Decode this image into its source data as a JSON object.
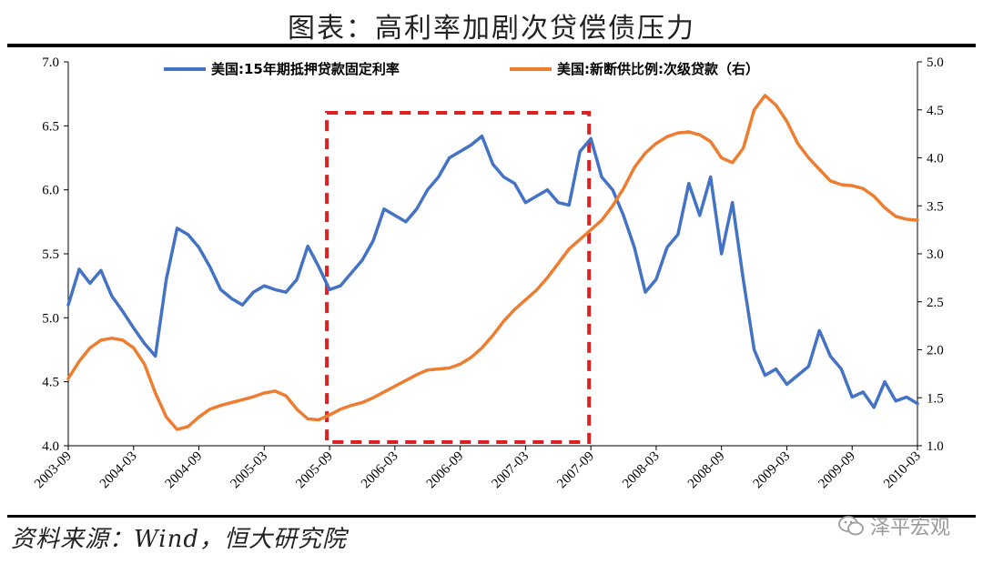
{
  "title": "图表：高利率加剧次贷偿债压力",
  "source": "资料来源：Wind，恒大研究院",
  "watermark": "泽平宏观",
  "colors": {
    "series1": "#4472C4",
    "series2": "#ED7D31",
    "highlight": "#E02020"
  },
  "chart_data": {
    "type": "line",
    "x_tick_labels": [
      "2003-09",
      "2004-03",
      "2004-09",
      "2005-03",
      "2005-09",
      "2006-03",
      "2006-09",
      "2007-03",
      "2007-09",
      "2008-03",
      "2008-09",
      "2009-03",
      "2009-09",
      "2010-03"
    ],
    "y_left_lim": [
      4.0,
      7.0
    ],
    "y_left_ticks": [
      "4.0",
      "4.5",
      "5.0",
      "5.5",
      "6.0",
      "6.5",
      "7.0"
    ],
    "y_right_lim": [
      1.0,
      5.0
    ],
    "y_right_ticks": [
      "1.0",
      "1.5",
      "2.0",
      "2.5",
      "3.0",
      "3.5",
      "4.0",
      "4.5",
      "5.0"
    ],
    "legend_position": "top",
    "highlight_box": {
      "x_start": "2005-09",
      "x_end": "2007-09"
    },
    "series": [
      {
        "name": "美国:15年期抵押贷款固定利率",
        "axis": "left",
        "color": "#4472C4",
        "points": [
          [
            "2003-09",
            5.1
          ],
          [
            "2003-10",
            5.38
          ],
          [
            "2003-11",
            5.27
          ],
          [
            "2003-12",
            5.37
          ],
          [
            "2004-01",
            5.17
          ],
          [
            "2004-02",
            5.05
          ],
          [
            "2004-03",
            4.92
          ],
          [
            "2004-04",
            4.8
          ],
          [
            "2004-05",
            4.7
          ],
          [
            "2004-06",
            5.3
          ],
          [
            "2004-07",
            5.7
          ],
          [
            "2004-08",
            5.65
          ],
          [
            "2004-09",
            5.55
          ],
          [
            "2004-10",
            5.4
          ],
          [
            "2004-11",
            5.22
          ],
          [
            "2004-12",
            5.15
          ],
          [
            "2005-01",
            5.1
          ],
          [
            "2005-02",
            5.2
          ],
          [
            "2005-03",
            5.25
          ],
          [
            "2005-04",
            5.22
          ],
          [
            "2005-05",
            5.2
          ],
          [
            "2005-06",
            5.3
          ],
          [
            "2005-07",
            5.56
          ],
          [
            "2005-08",
            5.4
          ],
          [
            "2005-09",
            5.22
          ],
          [
            "2005-10",
            5.25
          ],
          [
            "2005-11",
            5.35
          ],
          [
            "2005-12",
            5.45
          ],
          [
            "2006-01",
            5.6
          ],
          [
            "2006-02",
            5.85
          ],
          [
            "2006-03",
            5.8
          ],
          [
            "2006-04",
            5.75
          ],
          [
            "2006-05",
            5.85
          ],
          [
            "2006-06",
            6.0
          ],
          [
            "2006-07",
            6.1
          ],
          [
            "2006-08",
            6.25
          ],
          [
            "2006-09",
            6.3
          ],
          [
            "2006-10",
            6.35
          ],
          [
            "2006-11",
            6.42
          ],
          [
            "2006-12",
            6.2
          ],
          [
            "2007-01",
            6.1
          ],
          [
            "2007-02",
            6.05
          ],
          [
            "2007-03",
            5.9
          ],
          [
            "2007-04",
            5.95
          ],
          [
            "2007-05",
            6.0
          ],
          [
            "2007-06",
            5.9
          ],
          [
            "2007-07",
            5.88
          ],
          [
            "2007-08",
            6.3
          ],
          [
            "2007-09",
            6.4
          ],
          [
            "2007-10",
            6.1
          ],
          [
            "2007-11",
            6.0
          ],
          [
            "2007-12",
            5.8
          ],
          [
            "2008-01",
            5.55
          ],
          [
            "2008-02",
            5.2
          ],
          [
            "2008-03",
            5.3
          ],
          [
            "2008-04",
            5.55
          ],
          [
            "2008-05",
            5.65
          ],
          [
            "2008-06",
            6.05
          ],
          [
            "2008-07",
            5.8
          ],
          [
            "2008-08",
            6.1
          ],
          [
            "2008-09",
            5.5
          ],
          [
            "2008-10",
            5.9
          ],
          [
            "2008-11",
            5.3
          ],
          [
            "2008-12",
            4.75
          ],
          [
            "2009-01",
            4.55
          ],
          [
            "2009-02",
            4.6
          ],
          [
            "2009-03",
            4.48
          ],
          [
            "2009-04",
            4.55
          ],
          [
            "2009-05",
            4.62
          ],
          [
            "2009-06",
            4.9
          ],
          [
            "2009-07",
            4.7
          ],
          [
            "2009-08",
            4.6
          ],
          [
            "2009-09",
            4.38
          ],
          [
            "2009-10",
            4.42
          ],
          [
            "2009-11",
            4.3
          ],
          [
            "2009-12",
            4.5
          ],
          [
            "2010-01",
            4.35
          ],
          [
            "2010-02",
            4.38
          ],
          [
            "2010-03",
            4.33
          ]
        ]
      },
      {
        "name": "美国:新断供比例:次级贷款（右）",
        "axis": "right",
        "color": "#ED7D31",
        "points": [
          [
            "2003-09",
            1.7
          ],
          [
            "2003-10",
            1.88
          ],
          [
            "2003-11",
            2.02
          ],
          [
            "2003-12",
            2.1
          ],
          [
            "2004-01",
            2.12
          ],
          [
            "2004-02",
            2.1
          ],
          [
            "2004-03",
            2.02
          ],
          [
            "2004-04",
            1.85
          ],
          [
            "2004-05",
            1.55
          ],
          [
            "2004-06",
            1.3
          ],
          [
            "2004-07",
            1.17
          ],
          [
            "2004-08",
            1.2
          ],
          [
            "2004-09",
            1.3
          ],
          [
            "2004-10",
            1.38
          ],
          [
            "2004-11",
            1.42
          ],
          [
            "2004-12",
            1.45
          ],
          [
            "2005-01",
            1.48
          ],
          [
            "2005-02",
            1.51
          ],
          [
            "2005-03",
            1.55
          ],
          [
            "2005-04",
            1.57
          ],
          [
            "2005-05",
            1.52
          ],
          [
            "2005-06",
            1.38
          ],
          [
            "2005-07",
            1.28
          ],
          [
            "2005-08",
            1.27
          ],
          [
            "2005-09",
            1.32
          ],
          [
            "2005-10",
            1.38
          ],
          [
            "2005-11",
            1.42
          ],
          [
            "2005-12",
            1.45
          ],
          [
            "2006-01",
            1.5
          ],
          [
            "2006-02",
            1.56
          ],
          [
            "2006-03",
            1.62
          ],
          [
            "2006-04",
            1.68
          ],
          [
            "2006-05",
            1.74
          ],
          [
            "2006-06",
            1.79
          ],
          [
            "2006-07",
            1.8
          ],
          [
            "2006-08",
            1.81
          ],
          [
            "2006-09",
            1.85
          ],
          [
            "2006-10",
            1.92
          ],
          [
            "2006-11",
            2.02
          ],
          [
            "2006-12",
            2.15
          ],
          [
            "2007-01",
            2.3
          ],
          [
            "2007-02",
            2.42
          ],
          [
            "2007-03",
            2.52
          ],
          [
            "2007-04",
            2.62
          ],
          [
            "2007-05",
            2.75
          ],
          [
            "2007-06",
            2.9
          ],
          [
            "2007-07",
            3.05
          ],
          [
            "2007-08",
            3.15
          ],
          [
            "2007-09",
            3.25
          ],
          [
            "2007-10",
            3.35
          ],
          [
            "2007-11",
            3.5
          ],
          [
            "2007-12",
            3.68
          ],
          [
            "2008-01",
            3.9
          ],
          [
            "2008-02",
            4.05
          ],
          [
            "2008-03",
            4.15
          ],
          [
            "2008-04",
            4.22
          ],
          [
            "2008-05",
            4.26
          ],
          [
            "2008-06",
            4.27
          ],
          [
            "2008-07",
            4.24
          ],
          [
            "2008-08",
            4.17
          ],
          [
            "2008-09",
            4.0
          ],
          [
            "2008-10",
            3.95
          ],
          [
            "2008-11",
            4.1
          ],
          [
            "2008-12",
            4.5
          ],
          [
            "2009-01",
            4.65
          ],
          [
            "2009-02",
            4.55
          ],
          [
            "2009-03",
            4.38
          ],
          [
            "2009-04",
            4.15
          ],
          [
            "2009-05",
            4.0
          ],
          [
            "2009-06",
            3.88
          ],
          [
            "2009-07",
            3.76
          ],
          [
            "2009-08",
            3.72
          ],
          [
            "2009-09",
            3.71
          ],
          [
            "2009-10",
            3.68
          ],
          [
            "2009-11",
            3.6
          ],
          [
            "2009-12",
            3.48
          ],
          [
            "2010-01",
            3.39
          ],
          [
            "2010-02",
            3.36
          ],
          [
            "2010-03",
            3.35
          ]
        ]
      }
    ]
  }
}
